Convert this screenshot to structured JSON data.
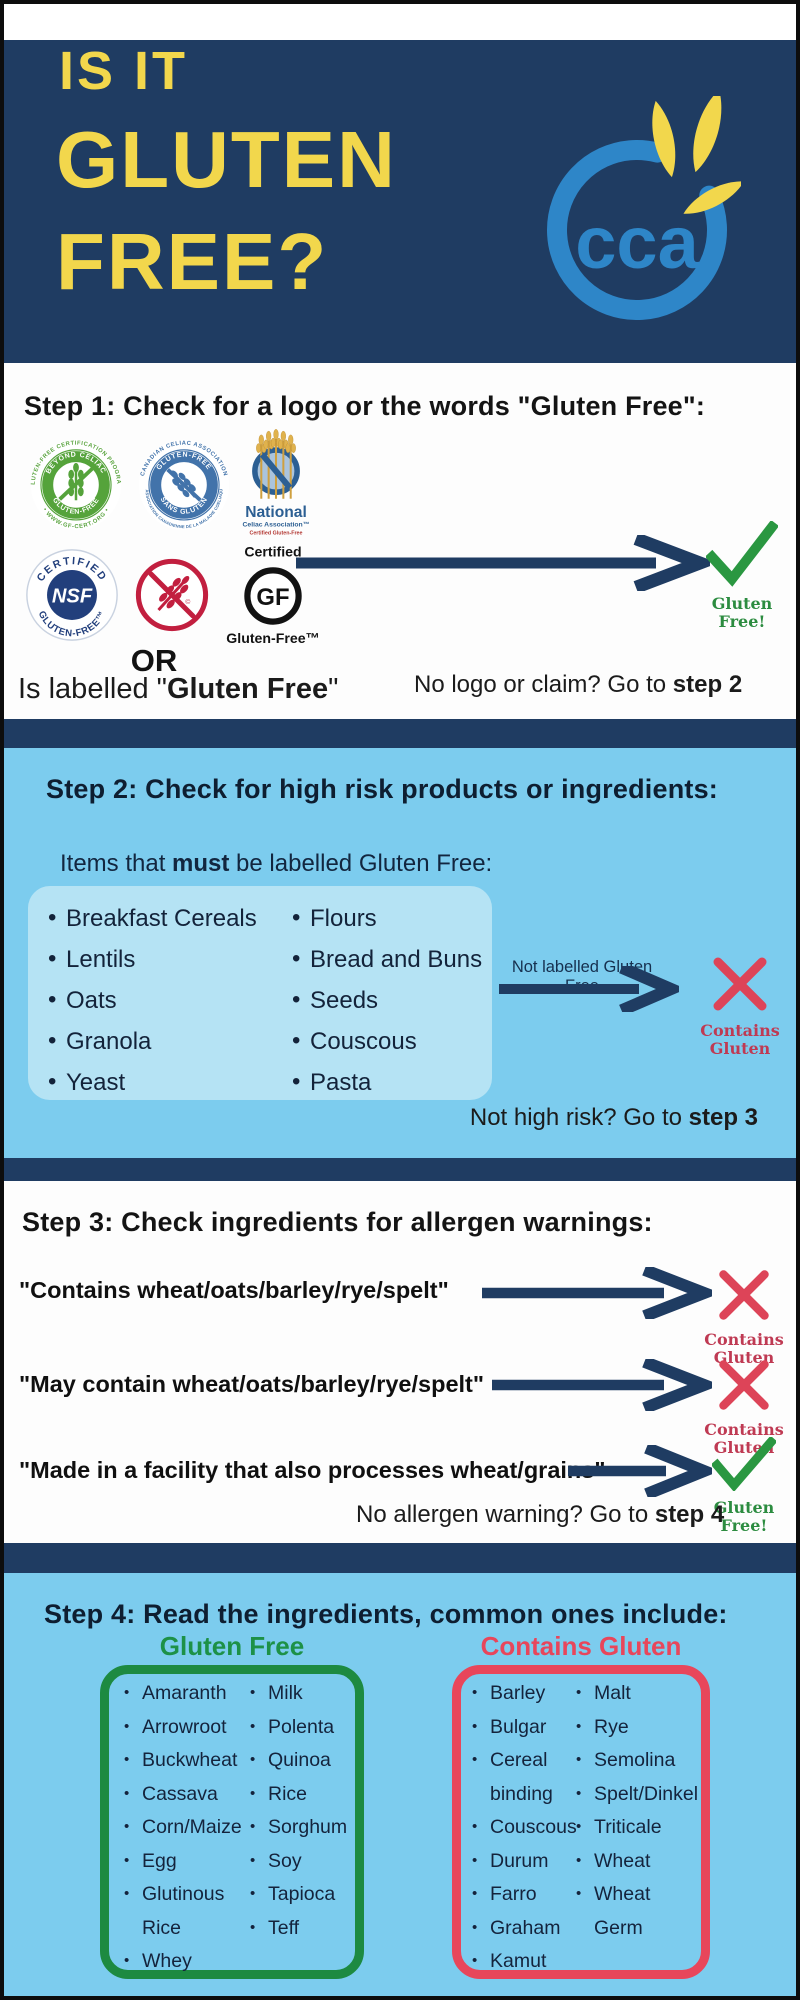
{
  "colors": {
    "navy": "#1f3c62",
    "light_blue": "#7cccee",
    "panel_blue": "#b5e3f4",
    "yellow": "#f2d74c",
    "logo_blue": "#2e86c8",
    "green_check": "#2a9741",
    "green_border": "#1d8a41",
    "red_x": "#dd4458",
    "red_border": "#e8465b"
  },
  "header": {
    "line1": "IS IT",
    "line2": "GLUTEN",
    "line3": "FREE?",
    "logo_text": "cca"
  },
  "results": {
    "free": {
      "line1": "Gluten",
      "line2": "Free!"
    },
    "contains": {
      "line1": "Contains",
      "line2": "Gluten"
    }
  },
  "step1": {
    "title": "Step 1: Check for a logo or the words \"Gluten Free\":",
    "logos": {
      "beyond_celiac": {
        "outer_top": "GLUTEN-FREE CERTIFICATION PROGRAM",
        "outer_bottom": "• WWW.GF-CERT.ORG •",
        "inner_top": "BEYOND CELIAC",
        "inner_bottom": "GLUTEN-FREE"
      },
      "cca_cert": {
        "outer_top": "CANADIAN CELIAC ASSOCIATION",
        "outer_bottom": "L'ASSOCIATION CANADIENNE DE LA MALADIE COELIAQUE",
        "inner_top": "GLUTEN-FREE",
        "inner_bottom": "SANS GLUTEN"
      },
      "nca": {
        "line1": "National",
        "line2": "Celiac Association™",
        "line3": "Certified Gluten-Free"
      },
      "nsf": {
        "top": "CERTIFIED",
        "center": "NSF",
        "bottom": "GLUTEN-FREE™"
      },
      "gf": {
        "top": "Certified",
        "center": "GF",
        "bottom": "Gluten-Free™"
      }
    },
    "or_label": "OR",
    "labelled_prefix": "Is labelled \"",
    "labelled_bold": "Gluten Free",
    "labelled_suffix": "\"",
    "hint_prefix": "No logo or claim?  Go to ",
    "hint_bold": "step 2"
  },
  "step2": {
    "title": "Step 2: Check for high risk products or ingredients:",
    "subtitle_prefix": "Items that ",
    "subtitle_bold": "must",
    "subtitle_suffix": " be labelled Gluten Free:",
    "col1": [
      "Breakfast Cereals",
      "Lentils",
      "Oats",
      "Granola",
      "Yeast"
    ],
    "col2": [
      "Flours",
      "Bread and Buns",
      "Seeds",
      "Couscous",
      "Pasta"
    ],
    "arrow_label": "Not labelled Gluten Free",
    "hint_prefix": "Not high risk? Go to ",
    "hint_bold": "step 3"
  },
  "step3": {
    "title": "Step 3: Check ingredients for allergen warnings:",
    "rows": [
      {
        "label": "\"Contains wheat/oats/barley/rye/spelt\""
      },
      {
        "label": "\"May contain wheat/oats/barley/rye/spelt\""
      },
      {
        "label": "\"Made in a facility that also processes wheat/grains\""
      }
    ],
    "hint_prefix": "No allergen warning? Go to ",
    "hint_bold": "step 4"
  },
  "step4": {
    "title": "Step 4: Read the ingredients, common ones include:",
    "gluten_free": {
      "title": "Gluten Free",
      "col1": [
        "Amaranth",
        "Arrowroot",
        "Buckwheat",
        "Cassava",
        "Corn/Maize",
        "Egg",
        "Glutinous Rice",
        "Whey"
      ],
      "col2": [
        "Milk",
        "Polenta",
        "Quinoa",
        "Rice",
        "Sorghum",
        "Soy",
        "Tapioca",
        "Teff"
      ]
    },
    "contains_gluten": {
      "title": "Contains Gluten",
      "col1": [
        "Barley",
        "Bulgar",
        "Cereal binding",
        "Couscous",
        "Durum",
        "Farro",
        "Graham",
        "Kamut"
      ],
      "col2": [
        "Malt",
        "Rye",
        "Semolina",
        "Spelt/Dinkel",
        "Triticale",
        "Wheat",
        "Wheat Germ"
      ]
    }
  }
}
